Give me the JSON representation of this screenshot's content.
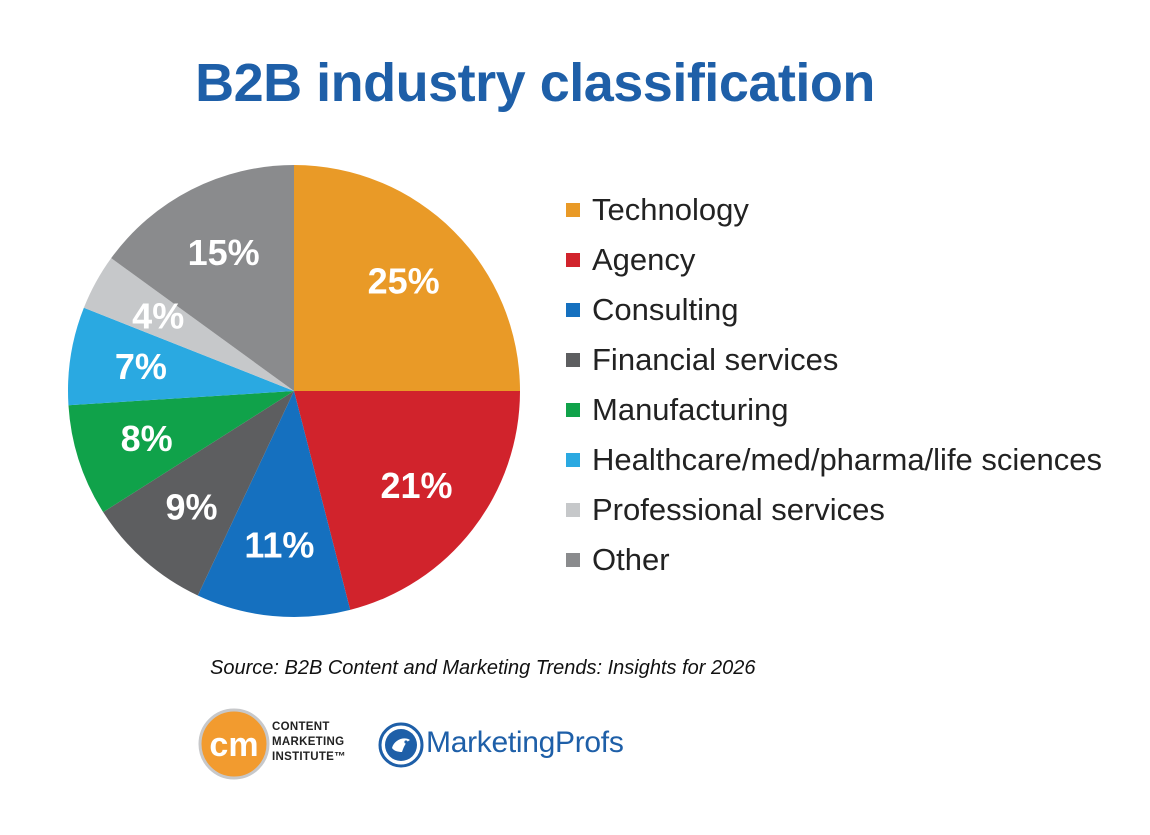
{
  "chart_data": {
    "type": "pie",
    "title": "B2B industry classification",
    "categories": [
      "Technology",
      "Agency",
      "Consulting",
      "Financial services",
      "Manufacturing",
      "Healthcare/med/pharma/life sciences",
      "Professional services",
      "Other"
    ],
    "values": [
      25,
      21,
      11,
      9,
      8,
      7,
      4,
      15
    ],
    "value_labels": [
      "25%",
      "21%",
      "11%",
      "9%",
      "8%",
      "7%",
      "4%",
      "15%"
    ],
    "colors": [
      "#e99a27",
      "#d1232c",
      "#1570bf",
      "#5d5e60",
      "#10a24a",
      "#2aa9e1",
      "#c6c8ca",
      "#8a8b8d"
    ],
    "start_angle": "12 o'clock, clockwise",
    "legend_position": "right"
  },
  "source": "Source: B2B Content and Marketing Trends: Insights for 2026",
  "logos": {
    "cmi": {
      "mark": "cm",
      "lines": [
        "CONTENT",
        "MARKETING",
        "INSTITUTE™"
      ]
    },
    "marketingprofs": {
      "name": "MarketingProfs",
      "color": "#1e5fa8"
    }
  }
}
